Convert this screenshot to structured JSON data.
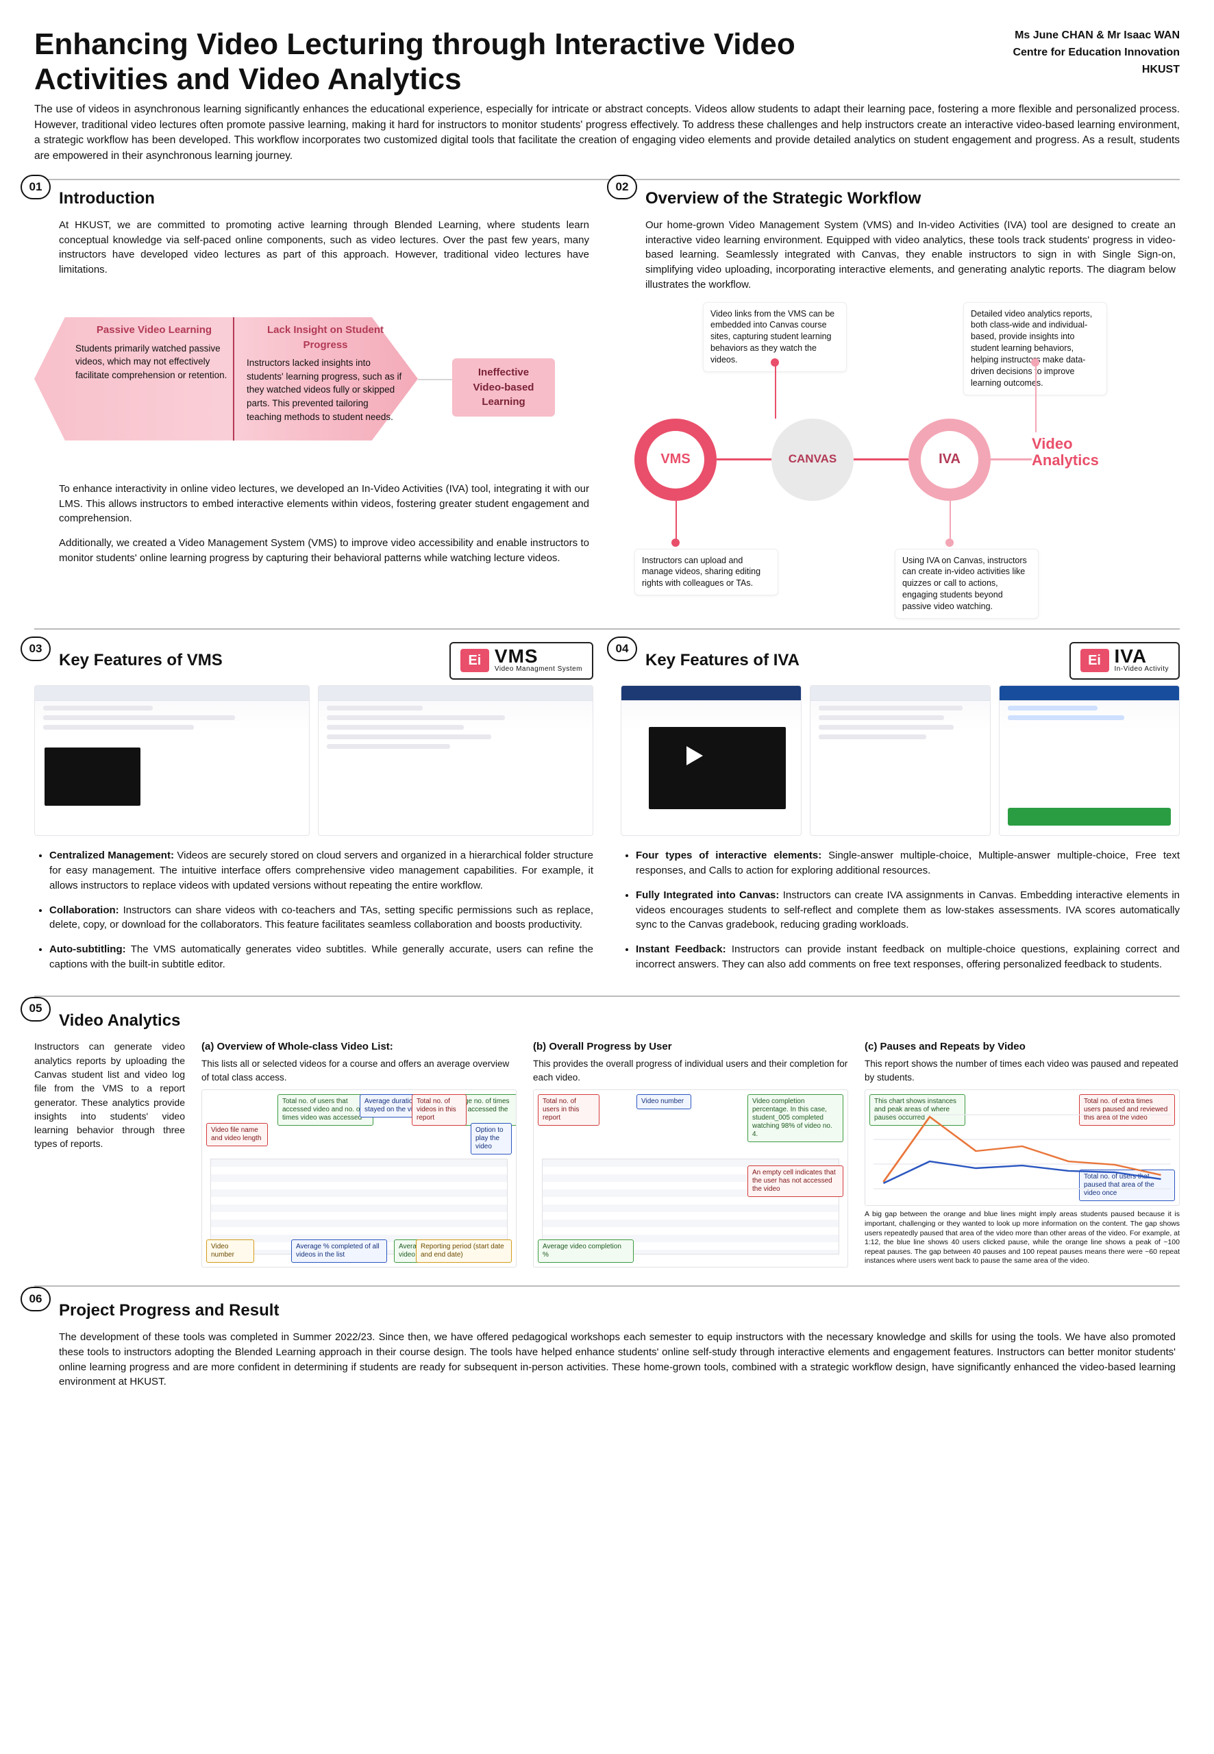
{
  "title": "Enhancing Video Lecturing through Interactive Video Activities and Video Analytics",
  "authors": {
    "names": "Ms June CHAN & Mr Isaac WAN",
    "affiliation": "Centre for Education Innovation",
    "inst": "HKUST"
  },
  "abstract": "The use of videos in asynchronous learning significantly enhances the educational experience, especially for intricate or abstract concepts. Videos allow students to adapt their learning pace, fostering a more flexible and personalized process. However, traditional video lectures often promote passive learning, making it hard for instructors to monitor students' progress effectively. To address these challenges and help instructors create an interactive video-based learning environment, a strategic workflow has been developed. This workflow incorporates two customized digital tools that facilitate the creation of engaging video elements and provide detailed analytics on student engagement and progress. As a result, students are empowered in their asynchronous learning journey.",
  "sections": {
    "s01": {
      "num": "01",
      "title": "Introduction"
    },
    "s02": {
      "num": "02",
      "title": "Overview of the Strategic Workflow"
    },
    "s03": {
      "num": "03",
      "title": "Key Features of VMS"
    },
    "s04": {
      "num": "04",
      "title": "Key Features of IVA"
    },
    "s05": {
      "num": "05",
      "title": "Video Analytics"
    },
    "s06": {
      "num": "06",
      "title": "Project Progress and Result"
    }
  },
  "intro": {
    "p1": "At HKUST, we are committed to promoting active learning through Blended Learning, where students learn conceptual knowledge via self-paced online components, such as video lectures. Over the past few years, many instructors have developed video lectures as part of this approach. However, traditional video lectures have limitations.",
    "box1_title": "Passive Video Learning",
    "box1_body": "Students primarily watched passive videos, which may not effectively facilitate comprehension or retention.",
    "box2_title": "Lack Insight on Student Progress",
    "box2_body": "Instructors lacked insights into students' learning progress, such as if they watched videos fully or skipped parts. This prevented tailoring teaching methods to student needs.",
    "result": "Ineffective Video-based Learning",
    "p2": "To enhance interactivity in online video lectures, we developed an In-Video Activities (IVA) tool, integrating it with our LMS. This allows instructors to embed interactive elements within videos, fostering greater student engagement and comprehension.",
    "p3": "Additionally, we created a Video Management System (VMS) to improve video accessibility and enable instructors to monitor students' online learning progress by capturing their behavioral patterns while watching lecture videos.",
    "colors": {
      "arrow": "#f7bdc8",
      "accent": "#b23a56"
    }
  },
  "overview": {
    "p1": "Our home-grown Video Management System (VMS) and In-video Activities (IVA) tool are designed to create an interactive video learning environment. Equipped with video analytics, these tools track students' progress in video-based learning. Seamlessly integrated with Canvas, they enable instructors to sign in with Single Sign-on, simplifying video uploading, incorporating interactive elements, and generating analytic reports. The diagram below illustrates the workflow.",
    "nodes": {
      "vms": "VMS",
      "canvas": "CANVAS",
      "iva": "IVA",
      "va": "Video Analytics"
    },
    "callout_top_left": "Video links from the VMS can be embedded into Canvas course sites, capturing student learning behaviors as they watch the videos.",
    "callout_top_right": "Detailed video analytics reports, both class-wide and individual-based, provide insights into student learning behaviors, helping instructors make data-driven decisions to improve learning outcomes.",
    "callout_bot_left": "Instructors can upload and manage videos, sharing editing rights with colleagues or TAs.",
    "callout_bot_right": "Using IVA on Canvas, instructors can create in-video activities like quizzes or call to actions, engaging students beyond passive video watching.",
    "colors": {
      "ring1": "#e94f6a",
      "ring2": "#f3a6b5",
      "center": "#e9e9e9"
    }
  },
  "vms": {
    "logo_main": "VMS",
    "logo_sub": "Video Managment System",
    "bullets": [
      {
        "b": "Centralized Management:",
        "t": " Videos are securely stored on cloud servers and organized in a hierarchical folder structure for easy management. The intuitive interface offers comprehensive video management capabilities. For example, it allows instructors to replace videos with updated versions without repeating the entire workflow."
      },
      {
        "b": "Collaboration:",
        "t": " Instructors can share videos with co-teachers and TAs, setting specific permissions such as replace, delete, copy, or download for the collaborators. This feature facilitates seamless collaboration and boosts productivity."
      },
      {
        "b": "Auto-subtitling:",
        "t": " The VMS automatically generates video subtitles. While generally accurate, users can refine the captions with the built-in subtitle editor."
      }
    ]
  },
  "iva": {
    "logo_main": "IVA",
    "logo_sub": "In-Video Activity",
    "bullets": [
      {
        "b": "Four types of interactive elements:",
        "t": " Single-answer multiple-choice, Multiple-answer multiple-choice, Free text responses, and Calls to action for exploring additional resources."
      },
      {
        "b": "Fully Integrated into Canvas:",
        "t": " Instructors can create IVA assignments in Canvas. Embedding interactive elements in videos encourages students to self-reflect and complete them as low-stakes assessments. IVA scores automatically sync to the Canvas gradebook, reducing grading workloads."
      },
      {
        "b": "Instant Feedback:",
        "t": " Instructors can provide instant feedback on multiple-choice questions, explaining correct and incorrect answers. They can also add comments on free text responses, offering personalized feedback to students."
      }
    ]
  },
  "analytics": {
    "intro": "Instructors can generate video analytics reports by uploading the Canvas student list and video log file from the VMS to a report generator. These analytics provide insights into students' video learning behavior through three types of reports.",
    "a": {
      "h": "(a) Overview of Whole-class Video List:",
      "sub": "This lists all or selected videos for a course and offers an average overview of total class access.",
      "labels": {
        "c1": "Video file name and video length",
        "c2": "Total no. of users that accessed video and no. of times video was accessed",
        "c3": "Average duration a user stayed on the video",
        "c4": "Average no. of times a user accessed the video",
        "c5": "Total no. of videos in this report",
        "c6": "Option to play the video",
        "c7": "Video number",
        "c8": "Average % completed of all videos in the list",
        "c9": "Average % completed per video",
        "c10": "Reporting period (start date and end date)"
      }
    },
    "b": {
      "h": "(b) Overall Progress by User",
      "sub": "This provides the overall progress of individual users and their completion for each video.",
      "labels": {
        "c1": "Total no. of users in this report",
        "c2": "Video number",
        "c3": "Video completion percentage. In this case, student_005 completed watching 98% of video no. 4.",
        "c4": "An empty cell indicates that the user has not accessed the video",
        "c5": "Average video completion %"
      }
    },
    "c": {
      "h": "(c) Pauses and Repeats by Video",
      "sub": "This report shows the number of times each video was paused and repeated by students.",
      "labels": {
        "c1": "This chart shows instances and peak areas of where pauses occurred",
        "c2": "Total no. of extra times users paused and reviewed this area of the video",
        "c3": "Total no. of users that paused that area of the video once",
        "caption": "A big gap between the orange and blue lines might imply areas students paused because it is important, challenging or they wanted to look up more information on the content. The gap shows users repeatedly paused that area of the video more than other areas of the video. For example, at 1:12, the blue line shows 40 users clicked pause, while the orange line shows a peak of ~100 repeat pauses. The gap between 40 pauses and 100 repeat pauses means there were ~60 repeat instances where users went back to pause the same area of the video."
      },
      "chart": {
        "type": "line",
        "x_ticks": [
          0,
          1,
          2,
          3,
          4,
          5,
          6
        ],
        "series": [
          {
            "name": "repeat",
            "color": "#e9763a",
            "values": [
              10,
              105,
              55,
              62,
              40,
              35,
              20
            ]
          },
          {
            "name": "once",
            "color": "#2a56c0",
            "values": [
              8,
              40,
              30,
              34,
              26,
              24,
              14
            ]
          }
        ],
        "ylim": [
          0,
          120
        ],
        "grid_color": "#e8e8ee"
      }
    }
  },
  "result": "The development of these tools was completed in Summer 2022/23. Since then, we have offered pedagogical workshops each semester to equip instructors with the necessary knowledge and skills for using the tools. We have also promoted these tools to instructors adopting the Blended Learning approach in their course design. The tools have helped enhance students' online self-study through interactive elements and engagement features. Instructors can better monitor students' online learning progress and are more confident in determining if students are ready for subsequent in-person activities. These home-grown tools, combined with a strategic workflow design, have significantly enhanced the video-based learning environment at HKUST."
}
